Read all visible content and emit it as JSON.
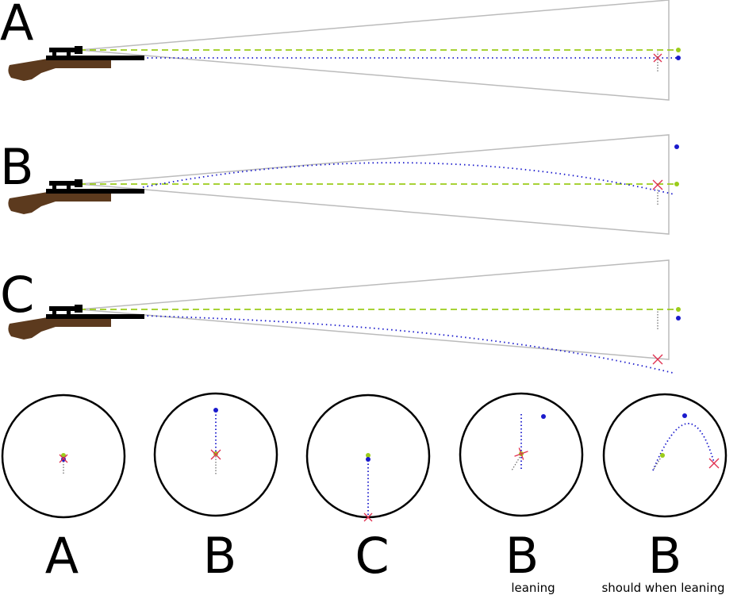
{
  "panels": [
    {
      "letter": "A",
      "trajectory": "flat"
    },
    {
      "letter": "B",
      "trajectory": "rises-then-drops"
    },
    {
      "letter": "C",
      "trajectory": "drops"
    }
  ],
  "targets": [
    {
      "letter": "A",
      "caption": ""
    },
    {
      "letter": "B",
      "caption": ""
    },
    {
      "letter": "C",
      "caption": ""
    },
    {
      "letter": "B",
      "caption": "leaning"
    },
    {
      "letter": "B",
      "caption": "should when leaning"
    }
  ],
  "colors": {
    "sight_line": "#9bcc1a",
    "trajectory": "#1a1acc",
    "impact_marker": "#e03050",
    "cone": "#bbbbbb",
    "stock": "#5c3a1e",
    "barrel": "#000000"
  }
}
